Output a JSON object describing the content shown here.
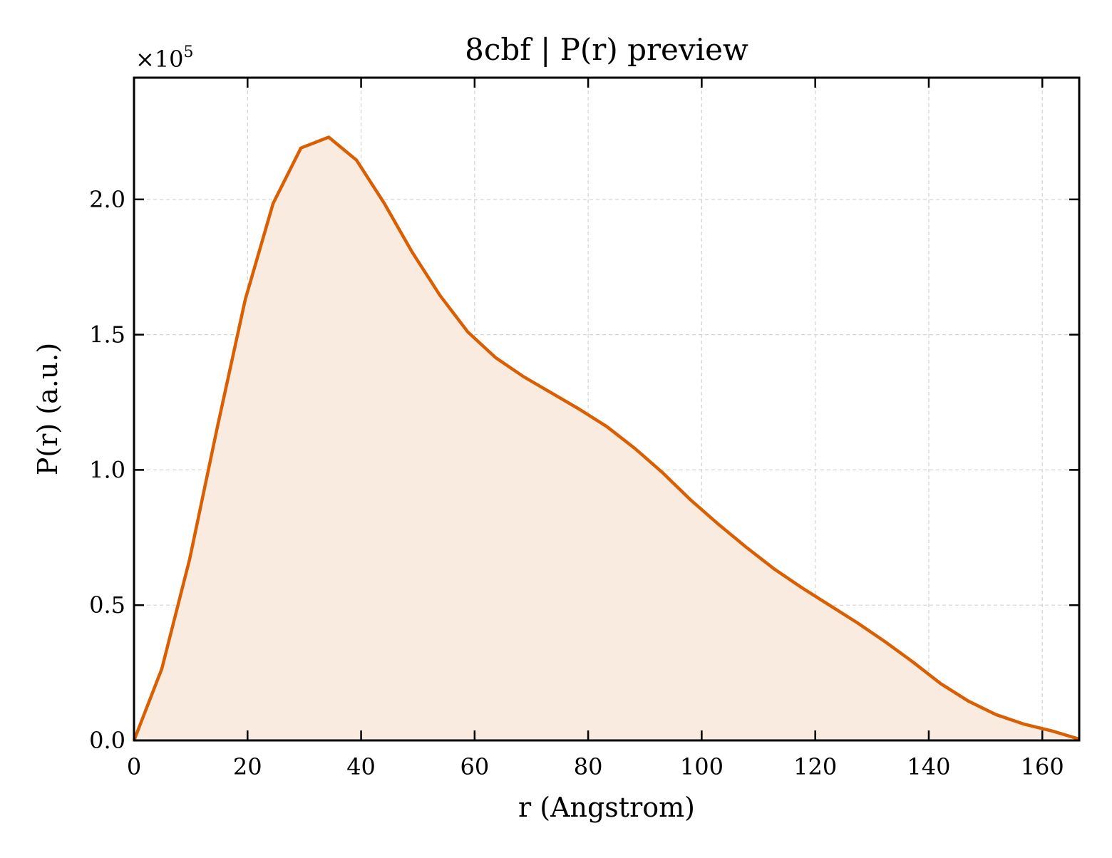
{
  "chart_data": {
    "type": "area",
    "title": "8cbf | P(r) preview",
    "xlabel": "r (Angstrom)",
    "ylabel": "P(r) (a.u.)",
    "y_multiplier_base": "×10",
    "y_multiplier_exp": "5",
    "xlim": [
      0,
      166.5
    ],
    "ylim": [
      0,
      2.45
    ],
    "x_ticks": [
      0,
      20,
      40,
      60,
      80,
      100,
      120,
      140,
      160
    ],
    "x_tick_labels": [
      "0",
      "20",
      "40",
      "60",
      "80",
      "100",
      "120",
      "140",
      "160"
    ],
    "y_ticks": [
      0,
      0.5,
      1.0,
      1.5,
      2.0
    ],
    "y_tick_labels": [
      "0.0",
      "0.5",
      "1.0",
      "1.5",
      "2.0"
    ],
    "grid": true,
    "line_color": "#d95f02",
    "fill_color": "#faebe0",
    "series": [
      {
        "x": [
          0,
          4.9,
          9.8,
          14.7,
          19.6,
          24.5,
          29.4,
          34.3,
          39.2,
          44.1,
          49.0,
          53.9,
          58.8,
          63.7,
          68.6,
          73.5,
          78.4,
          83.3,
          88.2,
          93.1,
          98.0,
          102.9,
          107.8,
          112.7,
          117.6,
          122.5,
          127.4,
          132.3,
          137.2,
          142.1,
          147.0,
          151.9,
          156.8,
          161.7,
          166.5
        ],
        "y": [
          0.0,
          0.265,
          0.67,
          1.16,
          1.63,
          1.985,
          2.19,
          2.23,
          2.145,
          1.985,
          1.805,
          1.645,
          1.51,
          1.415,
          1.345,
          1.285,
          1.225,
          1.16,
          1.08,
          0.99,
          0.89,
          0.8,
          0.715,
          0.635,
          0.565,
          0.5,
          0.435,
          0.365,
          0.29,
          0.21,
          0.145,
          0.095,
          0.06,
          0.035,
          0.005
        ]
      }
    ]
  }
}
